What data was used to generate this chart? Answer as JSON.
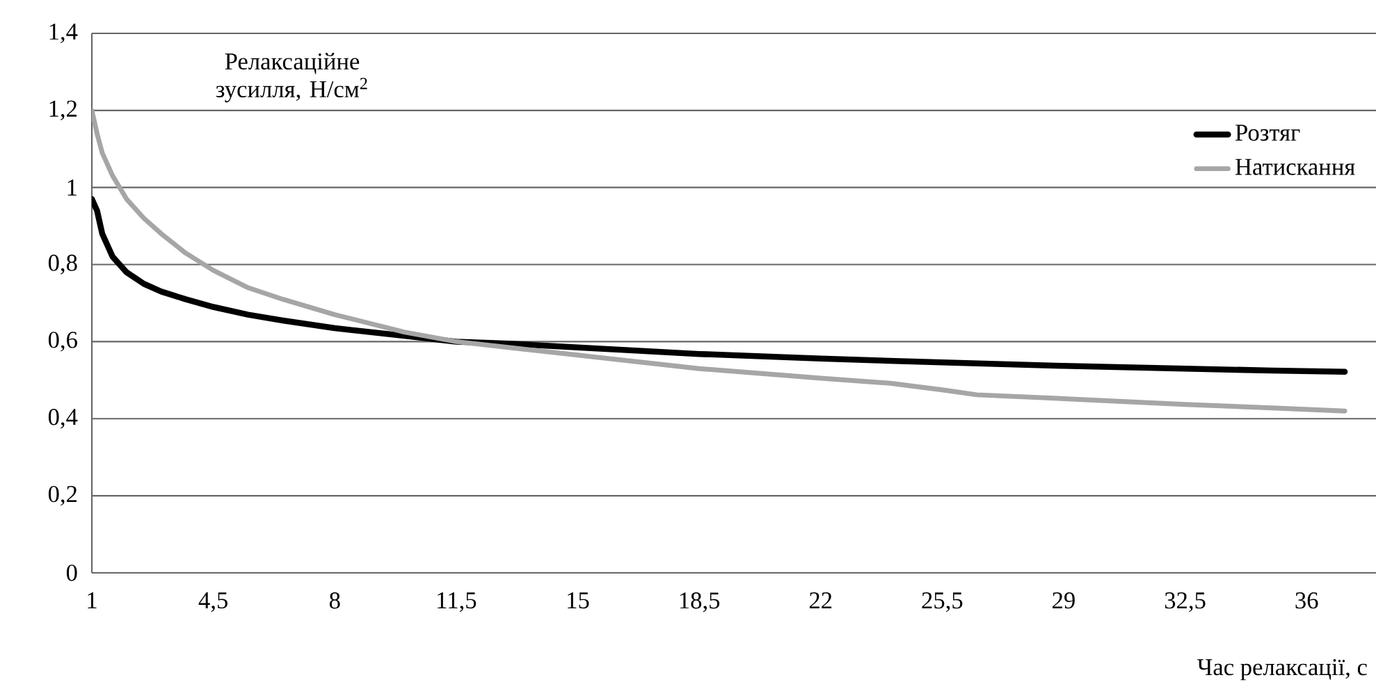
{
  "chart_data": {
    "type": "line",
    "xlabel": "Час релаксації, с",
    "ylabel": "Релаксаційне зусилля, Н/см$^{2}$",
    "xlim": [
      1,
      38
    ],
    "ylim": [
      0,
      1.4
    ],
    "xticks": [
      1,
      {
        "value": 4.5,
        "label": "4,5"
      },
      8,
      {
        "value": 11.5,
        "label": "11,5"
      },
      15,
      {
        "value": 18.5,
        "label": "18,5"
      },
      22,
      {
        "value": 25.5,
        "label": "25,5"
      },
      29,
      {
        "value": 32.5,
        "label": "32,5"
      },
      36
    ],
    "yticks": [
      0,
      {
        "value": 0.2,
        "label": "0,2"
      },
      {
        "value": 0.4,
        "label": "0,4"
      },
      {
        "value": 0.6,
        "label": "0,6"
      },
      {
        "value": 0.8,
        "label": "0,8"
      },
      1,
      {
        "value": 1.2,
        "label": "1,2"
      },
      {
        "value": 1.4,
        "label": "1,4"
      }
    ],
    "grid": "y",
    "legend": "top right",
    "marker": "none",
    "line_style": "solid",
    "series": [
      {
        "name": "Розтяг",
        "color": "#000000",
        "x": [
          1,
          1.15,
          1.3,
          1.6,
          2,
          2.5,
          3,
          3.7,
          4.5,
          5.5,
          6.5,
          8,
          10,
          11.5,
          13,
          15,
          18.5,
          22,
          25.5,
          29,
          32.5,
          35,
          37.1
        ],
        "values": [
          0.97,
          0.94,
          0.88,
          0.82,
          0.78,
          0.75,
          0.73,
          0.71,
          0.69,
          0.67,
          0.655,
          0.635,
          0.615,
          0.6,
          0.595,
          0.585,
          0.568,
          0.556,
          0.546,
          0.537,
          0.53,
          0.525,
          0.522
        ]
      },
      {
        "name": "Натискання",
        "color": "#a6a6a6",
        "x": [
          1,
          1.15,
          1.3,
          1.6,
          2,
          2.5,
          3,
          3.7,
          4.5,
          5.5,
          6.5,
          8,
          10,
          11.5,
          13,
          15,
          18.5,
          22,
          24,
          25.5,
          26.5,
          29,
          32.5,
          35,
          37.1
        ],
        "values": [
          1.2,
          1.14,
          1.09,
          1.03,
          0.97,
          0.92,
          0.88,
          0.83,
          0.785,
          0.74,
          0.71,
          0.67,
          0.625,
          0.6,
          0.585,
          0.565,
          0.53,
          0.505,
          0.492,
          0.475,
          0.462,
          0.452,
          0.437,
          0.428,
          0.42
        ]
      }
    ]
  }
}
